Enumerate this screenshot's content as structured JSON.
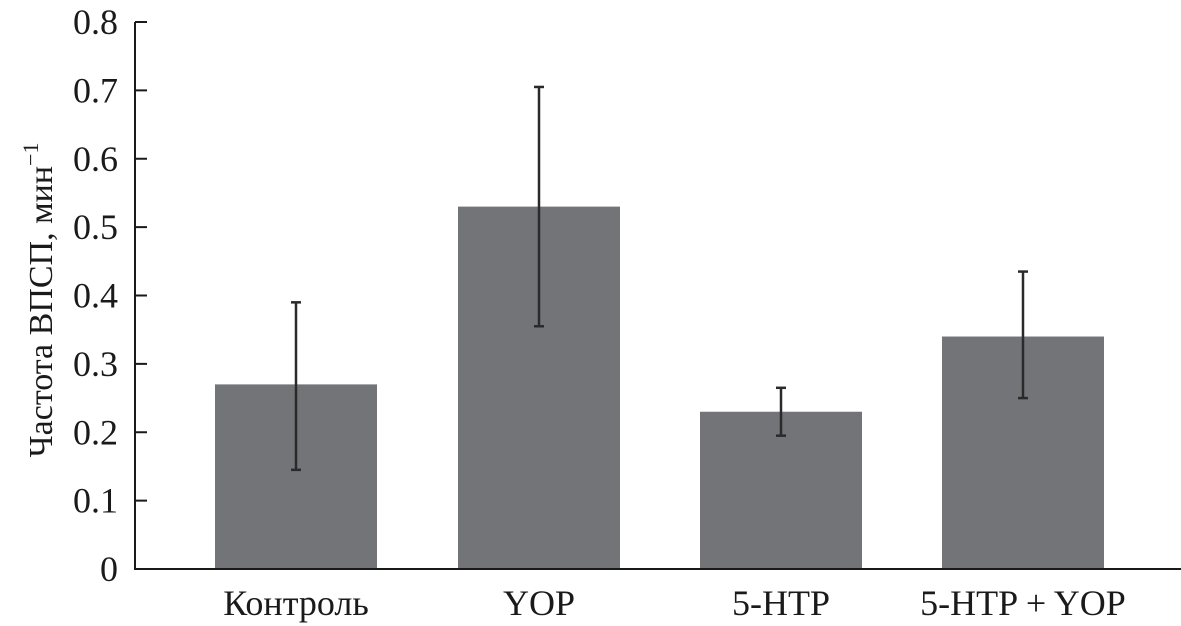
{
  "chart_data": {
    "type": "bar",
    "title": "",
    "xlabel": "",
    "ylabel": "Частота ВПСП, мин",
    "ylabel_superscript": "−1",
    "categories": [
      "Контроль",
      "YOP",
      "5-HTP",
      "5-HTP + YOP"
    ],
    "values": [
      0.27,
      0.53,
      0.23,
      0.34
    ],
    "error_upper": [
      0.39,
      0.705,
      0.265,
      0.435
    ],
    "error_lower": [
      0.145,
      0.355,
      0.195,
      0.25
    ],
    "ylim": [
      0,
      0.8
    ],
    "yticks": [
      "0",
      "0.1",
      "0.2",
      "0.3",
      "0.4",
      "0.5",
      "0.6",
      "0.7",
      "0.8"
    ],
    "grid": false,
    "bar_color": "#737478",
    "axis_color": "#1a1a1a"
  }
}
